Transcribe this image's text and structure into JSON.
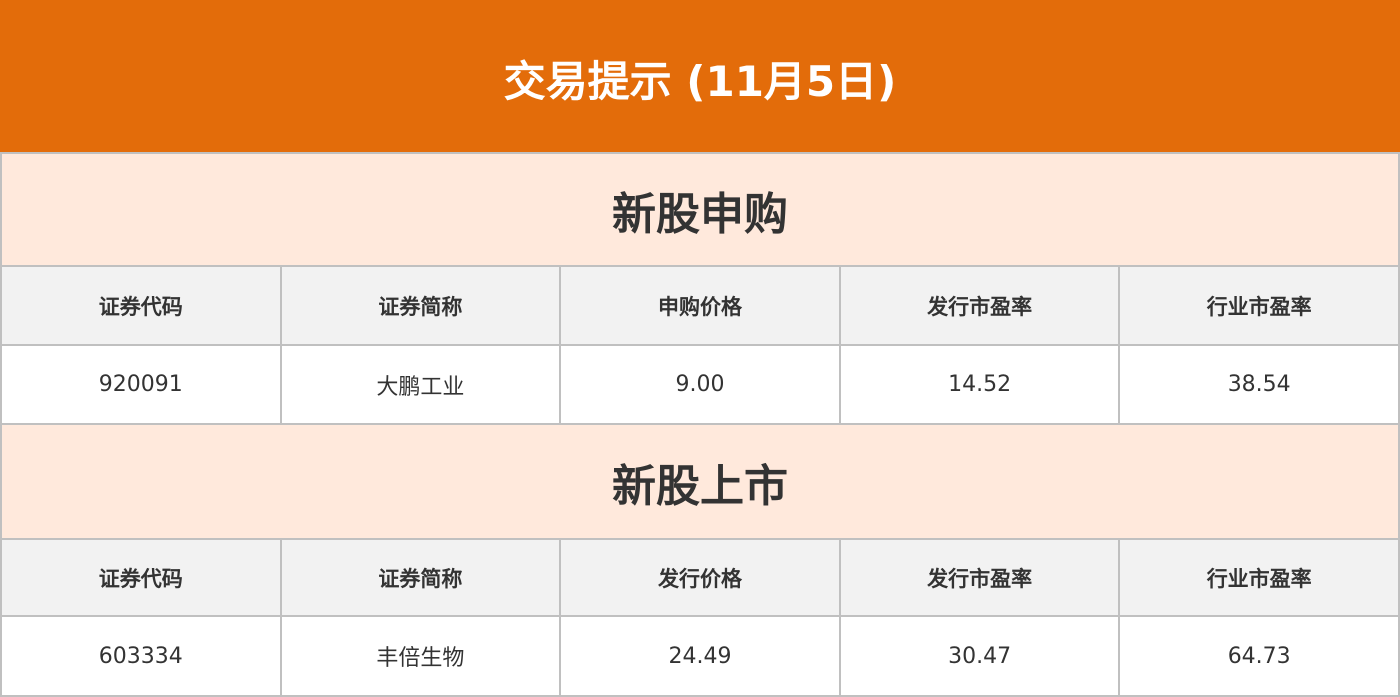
{
  "title": "交易提示 (11月5日)",
  "colors": {
    "banner": "#e36c0a",
    "section_bg": "#ffe9dc",
    "header_bg": "#f2f2f2"
  },
  "subscription": {
    "title": "新股申购",
    "headers": [
      "证券代码",
      "证券简称",
      "申购价格",
      "发行市盈率",
      "行业市盈率"
    ],
    "rows": [
      [
        "920091",
        "大鹏工业",
        "9.00",
        "14.52",
        "38.54"
      ]
    ]
  },
  "listing": {
    "title": "新股上市",
    "headers": [
      "证券代码",
      "证券简称",
      "发行价格",
      "发行市盈率",
      "行业市盈率"
    ],
    "rows": [
      [
        "603334",
        "丰倍生物",
        "24.49",
        "30.47",
        "64.73"
      ]
    ]
  }
}
